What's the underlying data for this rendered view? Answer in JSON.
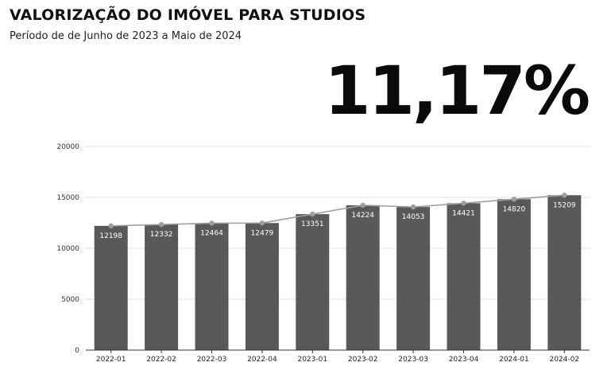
{
  "header": {
    "title": "VALORIZAÇÃO DO IMÓVEL PARA STUDIOS",
    "subtitle": "Período de de Junho de 2023 a Maio de 2024",
    "headline_value": "11,17%"
  },
  "colors": {
    "bar": "#595959",
    "line": "#9e9e9e",
    "point": "#9e9e9e",
    "grid": "#e0e0e0",
    "axis": "#333333",
    "label_inside": "#ffffff"
  },
  "chart_data": {
    "type": "bar",
    "categories": [
      "2022-01",
      "2022-02",
      "2022-03",
      "2022-04",
      "2023-01",
      "2023-02",
      "2023-03",
      "2023-04",
      "2024-01",
      "2024-02"
    ],
    "series": [
      {
        "values": [
          12198,
          12332,
          12464,
          12479,
          13351,
          14224,
          14053,
          14421,
          14820,
          15209
        ]
      }
    ],
    "line_overlay": true,
    "data_labels": [
      "12198",
      "12332",
      "12464",
      "12479",
      "13351",
      "14224",
      "14053",
      "14421",
      "14820",
      "15209"
    ],
    "title": "",
    "xlabel": "",
    "ylabel": "",
    "ylim": [
      0,
      20000
    ],
    "yticks": [
      0,
      5000,
      10000,
      15000,
      20000
    ],
    "grid": true,
    "legend": "none"
  }
}
